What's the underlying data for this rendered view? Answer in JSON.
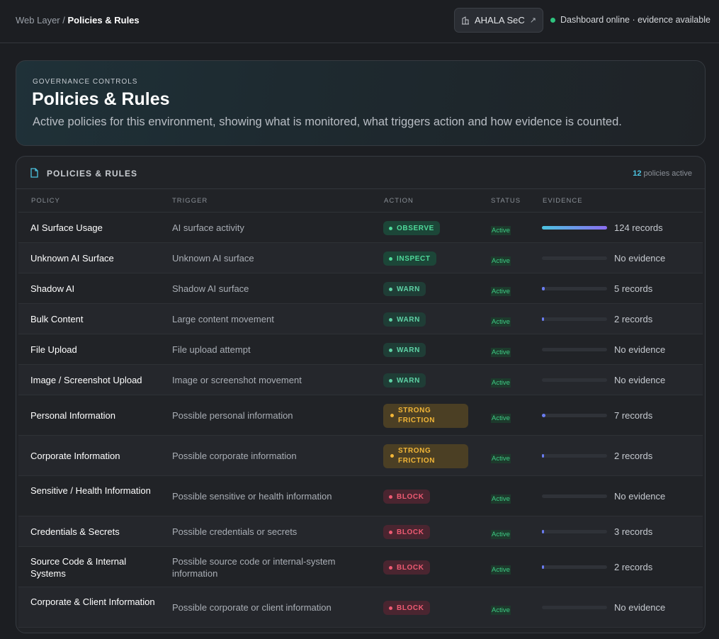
{
  "breadcrumb": {
    "parent": "Web Layer",
    "separator": " / ",
    "current": "Policies & Rules"
  },
  "header": {
    "brand_label": "AHALA SeC",
    "status_text": "Dashboard online · evidence available",
    "status_color": "#2ec27e"
  },
  "hero": {
    "eyebrow": "GOVERNANCE CONTROLS",
    "title": "Policies & Rules",
    "description": "Active policies for this environment, showing what is monitored, what triggers action and how evidence is counted."
  },
  "panel": {
    "title": "POLICIES & RULES",
    "active_count": "12",
    "active_suffix": " policies active",
    "columns": [
      "POLICY",
      "TRIGGER",
      "ACTION",
      "STATUS",
      "EVIDENCE"
    ]
  },
  "rows": [
    {
      "policy": "AI Surface Usage",
      "trigger": "AI surface activity",
      "action": "OBSERVE",
      "action_type": "observe",
      "status": "Active",
      "evidence_fraction": 1.0,
      "evidence": "124 records"
    },
    {
      "policy": "Unknown AI Surface",
      "trigger": "Unknown AI surface",
      "action": "INSPECT",
      "action_type": "observe",
      "status": "Active",
      "evidence_fraction": 0,
      "evidence": "No evidence"
    },
    {
      "policy": "Shadow AI",
      "trigger": "Shadow AI surface",
      "action": "WARN",
      "action_type": "warn",
      "status": "Active",
      "evidence_fraction": 0.04,
      "evidence": "5 records"
    },
    {
      "policy": "Bulk Content",
      "trigger": "Large content movement",
      "action": "WARN",
      "action_type": "warn",
      "status": "Active",
      "evidence_fraction": 0.016,
      "evidence": "2 records"
    },
    {
      "policy": "File Upload",
      "trigger": "File upload attempt",
      "action": "WARN",
      "action_type": "warn",
      "status": "Active",
      "evidence_fraction": 0,
      "evidence": "No evidence"
    },
    {
      "policy": "Image / Screenshot Upload",
      "trigger": "Image or screenshot movement",
      "action": "WARN",
      "action_type": "warn",
      "status": "Active",
      "evidence_fraction": 0,
      "evidence": "No evidence"
    },
    {
      "policy": "Personal Information",
      "trigger": "Possible personal information",
      "action": "STRONG FRICTION",
      "action_type": "strong",
      "status": "Active",
      "evidence_fraction": 0.056,
      "evidence": "7 records"
    },
    {
      "policy": "Corporate Information",
      "trigger": "Possible corporate information",
      "action": "STRONG FRICTION",
      "action_type": "strong",
      "status": "Active",
      "evidence_fraction": 0.016,
      "evidence": "2 records"
    },
    {
      "policy": "Sensitive / Health Information",
      "trigger": "Possible sensitive or health information",
      "action": "BLOCK",
      "action_type": "block",
      "status": "Active",
      "evidence_fraction": 0,
      "evidence": "No evidence"
    },
    {
      "policy": "Credentials & Secrets",
      "trigger": "Possible credentials or secrets",
      "action": "BLOCK",
      "action_type": "block",
      "status": "Active",
      "evidence_fraction": 0.024,
      "evidence": "3 records"
    },
    {
      "policy": "Source Code & Internal Systems",
      "trigger": "Possible source code or internal-system information",
      "action": "BLOCK",
      "action_type": "block",
      "status": "Active",
      "evidence_fraction": 0.016,
      "evidence": "2 records"
    },
    {
      "policy": "Corporate & Client Information",
      "trigger": "Possible corporate or client information",
      "action": "BLOCK",
      "action_type": "block",
      "status": "Active",
      "evidence_fraction": 0,
      "evidence": "No evidence"
    }
  ]
}
